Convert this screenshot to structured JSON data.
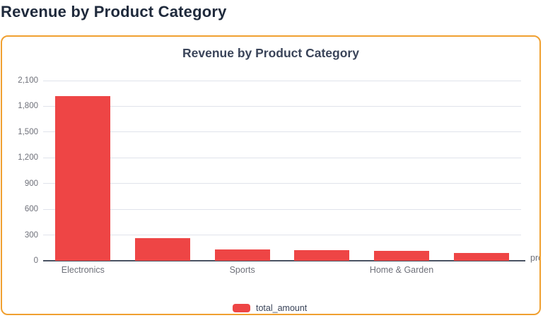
{
  "page": {
    "title": "Revenue by Product Category"
  },
  "card": {
    "border_color": "#F0A030"
  },
  "chart": {
    "title": "Revenue by Product Category",
    "legend": {
      "label": "total_amount",
      "marker_color": "#EE4545"
    }
  },
  "chart_data": {
    "type": "bar",
    "title": "Revenue by Product Category",
    "categories": [
      "Electronics",
      "",
      "Sports",
      "",
      "Home & Garden",
      ""
    ],
    "values": [
      1915,
      265,
      132,
      127,
      116,
      91
    ],
    "series": [
      {
        "name": "total_amount",
        "values": [
          1915,
          265,
          132,
          127,
          116,
          91
        ]
      }
    ],
    "bar_color": "#EE4545",
    "xlabel_visible": "pro",
    "ylabel": "",
    "ylim": [
      0,
      2100
    ],
    "yticks": [
      0,
      300,
      600,
      900,
      1200,
      1500,
      1800,
      2100
    ],
    "ytick_labels": [
      "0",
      "300",
      "600",
      "900",
      "1,200",
      "1,500",
      "1,800",
      "2,100"
    ],
    "grid": true,
    "legend_position": "bottom"
  }
}
